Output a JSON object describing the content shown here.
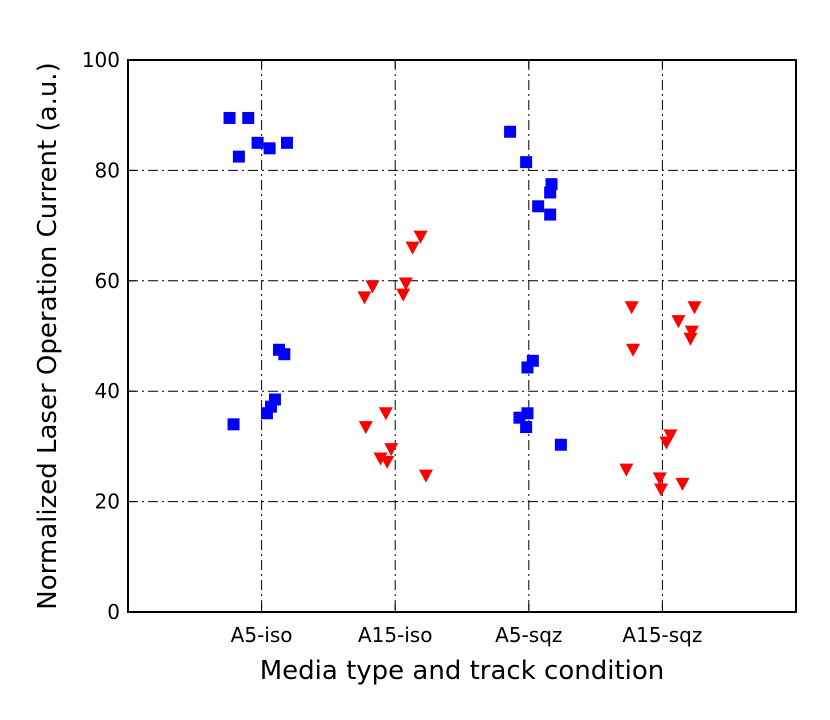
{
  "chart_data": {
    "type": "scatter",
    "title": "",
    "xlabel": "Media type and track condition",
    "ylabel": "Normalized Laser Operation Current (a.u.)",
    "categories": [
      "A5-iso",
      "A15-iso",
      "A5-sqz",
      "A15-sqz"
    ],
    "xlim": [
      0,
      5
    ],
    "ylim": [
      0,
      100
    ],
    "yticks": [
      0,
      20,
      40,
      60,
      80,
      100
    ],
    "grid": true,
    "legend": "none",
    "series": [
      {
        "marker": "square",
        "color": "#0000ff",
        "points": [
          {
            "x": 0.76,
            "y": 89.5
          },
          {
            "x": 0.9,
            "y": 89.5
          },
          {
            "x": 0.83,
            "y": 82.5
          },
          {
            "x": 0.97,
            "y": 85.0
          },
          {
            "x": 1.06,
            "y": 84.0
          },
          {
            "x": 1.19,
            "y": 85.0
          },
          {
            "x": 1.13,
            "y": 47.5
          },
          {
            "x": 1.17,
            "y": 46.7
          },
          {
            "x": 1.1,
            "y": 38.5
          },
          {
            "x": 1.07,
            "y": 37.2
          },
          {
            "x": 1.04,
            "y": 36.0
          },
          {
            "x": 0.79,
            "y": 34.0
          },
          {
            "x": 2.86,
            "y": 87.0
          },
          {
            "x": 2.98,
            "y": 81.5
          },
          {
            "x": 3.17,
            "y": 77.5
          },
          {
            "x": 3.16,
            "y": 76.0
          },
          {
            "x": 3.07,
            "y": 73.5
          },
          {
            "x": 3.16,
            "y": 72.0
          },
          {
            "x": 3.03,
            "y": 45.5
          },
          {
            "x": 2.99,
            "y": 44.3
          },
          {
            "x": 2.99,
            "y": 36.0
          },
          {
            "x": 2.93,
            "y": 35.2
          },
          {
            "x": 2.98,
            "y": 33.5
          },
          {
            "x": 3.24,
            "y": 30.3
          }
        ]
      },
      {
        "marker": "triangle-down",
        "color": "#ff0000",
        "points": [
          {
            "x": 1.77,
            "y": 57.0
          },
          {
            "x": 1.83,
            "y": 59.0
          },
          {
            "x": 2.08,
            "y": 59.5
          },
          {
            "x": 2.06,
            "y": 57.5
          },
          {
            "x": 2.13,
            "y": 66.0
          },
          {
            "x": 2.19,
            "y": 68.0
          },
          {
            "x": 1.78,
            "y": 33.5
          },
          {
            "x": 1.93,
            "y": 36.0
          },
          {
            "x": 1.97,
            "y": 29.5
          },
          {
            "x": 1.89,
            "y": 27.8
          },
          {
            "x": 1.94,
            "y": 27.2
          },
          {
            "x": 2.23,
            "y": 24.7
          },
          {
            "x": 3.77,
            "y": 55.2
          },
          {
            "x": 3.78,
            "y": 47.5
          },
          {
            "x": 4.12,
            "y": 52.7
          },
          {
            "x": 4.24,
            "y": 55.2
          },
          {
            "x": 4.22,
            "y": 50.8
          },
          {
            "x": 4.21,
            "y": 49.5
          },
          {
            "x": 3.73,
            "y": 25.8
          },
          {
            "x": 3.98,
            "y": 24.2
          },
          {
            "x": 3.99,
            "y": 22.2
          },
          {
            "x": 4.03,
            "y": 30.7
          },
          {
            "x": 4.06,
            "y": 32.0
          },
          {
            "x": 4.15,
            "y": 23.2
          }
        ]
      }
    ]
  }
}
